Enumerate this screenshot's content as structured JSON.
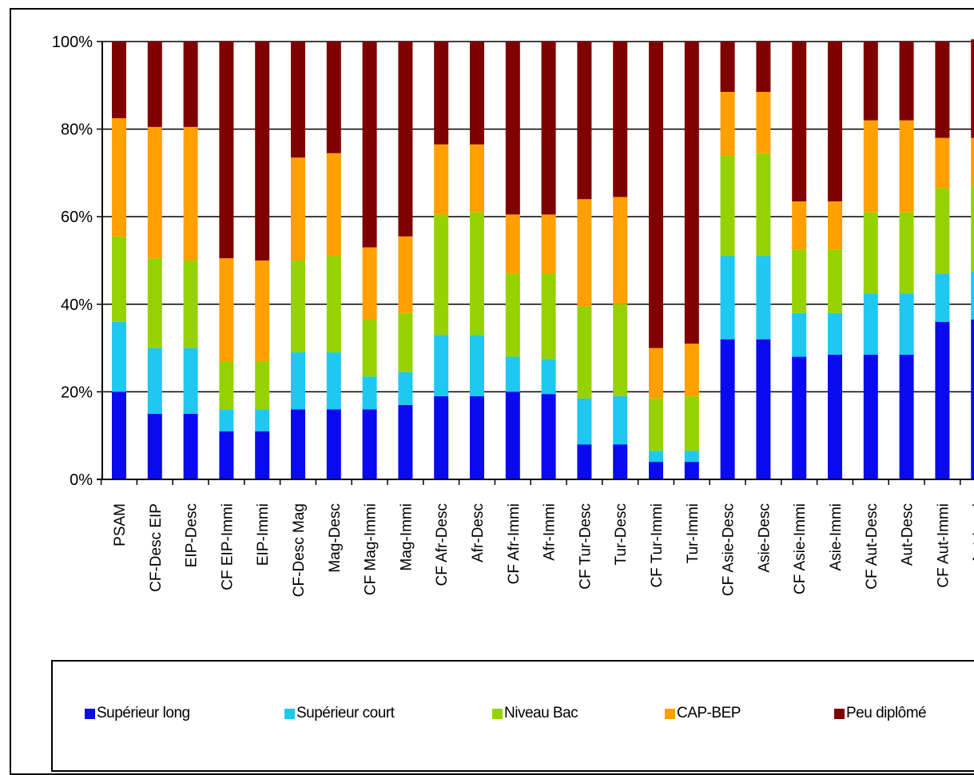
{
  "chart_data": {
    "type": "bar",
    "stacked": true,
    "title": "",
    "xlabel": "",
    "ylabel": "",
    "ylim": [
      0,
      100
    ],
    "y_ticks": [
      "0%",
      "20%",
      "40%",
      "60%",
      "80%",
      "100%"
    ],
    "grid": "horizontal",
    "legend_position": "bottom",
    "categories": [
      "PSAM",
      "CF-Desc EIP",
      "EIP-Desc",
      "CF EIP-Immi",
      "EIP-Immi",
      "CF-Desc Mag",
      "Mag-Desc",
      "CF Mag-Immi",
      "Mag-Immi",
      "CF Afr-Desc",
      "Afr-Desc",
      "CF Afr-Immi",
      "Afr-Immi",
      "CF Tur-Desc",
      "Tur-Desc",
      "CF Tur-Immi",
      "Tur-Immi",
      "CF Asie-Desc",
      "Asie-Desc",
      "CF Asie-Immi",
      "Asie-Immi",
      "CF Aut-Desc",
      "Aut-Desc",
      "CF Aut-Immi",
      "Aut-Immi"
    ],
    "series": [
      {
        "name": "Supérieur long",
        "color": "#0a0af0",
        "values": [
          20,
          15,
          15,
          11,
          11,
          16,
          16,
          16,
          17,
          19,
          19,
          20,
          19.5,
          8,
          8,
          4,
          4,
          32,
          32,
          28,
          28.5,
          28.5,
          28.5,
          36,
          36.5
        ]
      },
      {
        "name": "Supérieur court",
        "color": "#1ec8f0",
        "values": [
          16,
          15,
          15,
          5,
          5,
          13,
          13,
          7.5,
          7.5,
          14,
          14,
          8,
          8,
          10.5,
          11,
          2.5,
          2.5,
          19,
          19,
          10,
          9.5,
          14,
          14,
          11,
          11
        ]
      },
      {
        "name": "Niveau Bac",
        "color": "#96d200",
        "values": [
          19.5,
          20.5,
          20,
          11,
          11,
          21,
          22,
          13,
          13.5,
          27.5,
          28,
          19,
          19.5,
          21,
          21,
          12,
          12.5,
          23,
          23.5,
          14.5,
          14.5,
          18.5,
          18.5,
          19.5,
          19.5
        ]
      },
      {
        "name": "CAP-BEP",
        "color": "#ffa000",
        "values": [
          27,
          30,
          30.5,
          23.5,
          23,
          23.5,
          23.5,
          16.5,
          17.5,
          16,
          15.5,
          13.5,
          13.5,
          24.5,
          24.5,
          11.5,
          12,
          14.5,
          14,
          11,
          11,
          21,
          21,
          11.5,
          11
        ]
      },
      {
        "name": "Peu diplômé",
        "color": "#800000",
        "values": [
          17.5,
          19.5,
          19.5,
          49.5,
          50,
          26.5,
          25.5,
          47,
          44.5,
          23.5,
          23.5,
          39.5,
          39.5,
          36,
          35.5,
          70,
          69,
          11.5,
          11.5,
          36.5,
          36.5,
          18,
          18,
          22,
          22.5
        ]
      }
    ]
  }
}
